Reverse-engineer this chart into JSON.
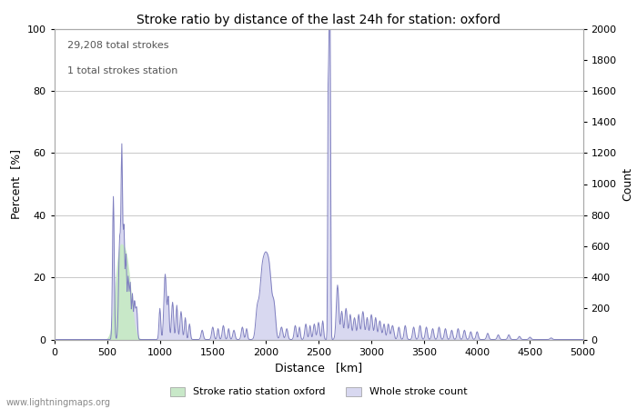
{
  "title": "Stroke ratio by distance of the last 24h for station: oxford",
  "xlabel": "Distance   [km]",
  "ylabel_left": "Percent  [%]",
  "ylabel_right": "Count",
  "annotation_line1": "29,208 total strokes",
  "annotation_line2": "1 total strokes station",
  "xlim": [
    0,
    5000
  ],
  "ylim_left": [
    0,
    100
  ],
  "ylim_right": [
    0,
    2000
  ],
  "xticks": [
    0,
    500,
    1000,
    1500,
    2000,
    2500,
    3000,
    3500,
    4000,
    4500,
    5000
  ],
  "yticks_left": [
    0,
    20,
    40,
    60,
    80,
    100
  ],
  "yticks_right": [
    0,
    200,
    400,
    600,
    800,
    1000,
    1200,
    1400,
    1600,
    1800,
    2000
  ],
  "line_color": "#8080c0",
  "fill_color_station": "#c8e8c8",
  "fill_color_whole": "#d8d8f0",
  "background_color": "#ffffff",
  "grid_color": "#c8c8c8",
  "watermark": "www.lightningmaps.org",
  "legend_station": "Stroke ratio station oxford",
  "legend_whole": "Whole stroke count",
  "seed": 42
}
